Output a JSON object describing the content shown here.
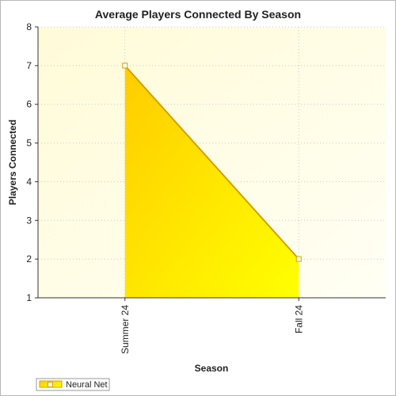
{
  "chart_data": {
    "type": "area",
    "title": "Average Players Connected By Season",
    "xlabel": "Season",
    "ylabel": "Players Connected",
    "categories": [
      "Summer 24",
      "Fall 24"
    ],
    "series": [
      {
        "name": "Neural Net",
        "values": [
          7,
          2
        ]
      }
    ],
    "ylim": [
      1,
      8
    ],
    "yticks": [
      1,
      2,
      3,
      4,
      5,
      6,
      7,
      8
    ],
    "grid": true,
    "legend_position": "bottom-left",
    "colors": {
      "fill_top": "#ffcc00",
      "fill_bottom": "#ffff00",
      "line": "#d4a000",
      "plot_bg": "#ffffe8",
      "marker": "#ffffff"
    }
  }
}
